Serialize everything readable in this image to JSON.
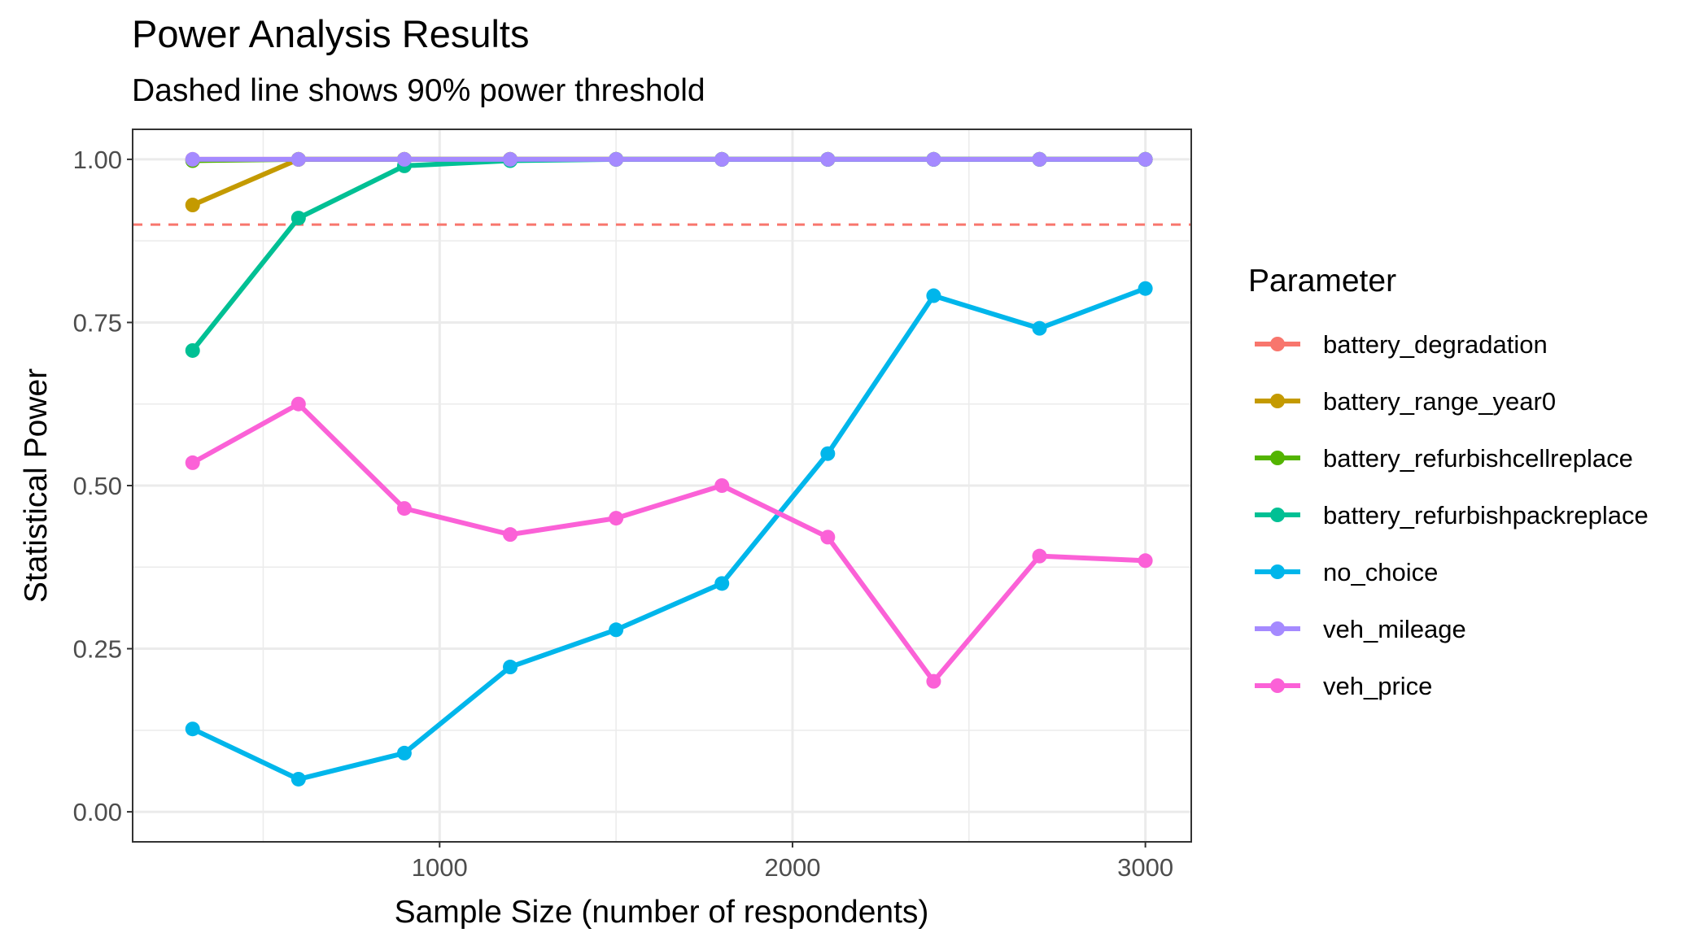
{
  "chart_data": {
    "type": "line",
    "title": "Power Analysis Results",
    "subtitle": "Dashed line shows 90% power threshold",
    "xlabel": "Sample Size (number of respondents)",
    "ylabel": "Statistical Power",
    "xlim": [
      130,
      3130
    ],
    "ylim": [
      -0.046,
      1.046
    ],
    "x_ticks": [
      1000,
      2000,
      3000
    ],
    "x_tick_labels": [
      "1000",
      "2000",
      "3000"
    ],
    "x_minor_ticks": [
      500,
      1500,
      2500
    ],
    "y_ticks": [
      0,
      0.25,
      0.5,
      0.75,
      1.0
    ],
    "y_tick_labels": [
      "0.00",
      "0.25",
      "0.50",
      "0.75",
      "1.00"
    ],
    "y_minor_ticks": [
      0.125,
      0.375,
      0.625,
      0.875
    ],
    "grid": true,
    "threshold": {
      "value": 0.9,
      "style": "dashed",
      "color": "#F8766D"
    },
    "legend": {
      "title": "Parameter",
      "placement": "right"
    },
    "x": [
      300,
      600,
      900,
      1200,
      1500,
      1800,
      2100,
      2400,
      2700,
      3000
    ],
    "series": [
      {
        "name": "battery_degradation",
        "color": "#F8766D",
        "values": [
          1,
          1,
          1,
          1,
          1,
          1,
          1,
          1,
          1,
          1
        ]
      },
      {
        "name": "battery_range_year0",
        "color": "#C49A00",
        "values": [
          0.93,
          1,
          1,
          1,
          1,
          1,
          1,
          1,
          1,
          1
        ]
      },
      {
        "name": "battery_refurbishcellreplace",
        "color": "#53B400",
        "values": [
          0.998,
          1,
          1,
          1,
          1,
          1,
          1,
          1,
          1,
          1
        ]
      },
      {
        "name": "battery_refurbishpackreplace",
        "color": "#00C094",
        "values": [
          0.707,
          0.91,
          0.99,
          0.998,
          1,
          1,
          1,
          1,
          1,
          1
        ]
      },
      {
        "name": "no_choice",
        "color": "#00B6EB",
        "values": [
          0.127,
          0.05,
          0.09,
          0.222,
          0.279,
          0.35,
          0.549,
          0.791,
          0.741,
          0.802
        ]
      },
      {
        "name": "veh_mileage",
        "color": "#A58AFF",
        "values": [
          1,
          1,
          1,
          1,
          1,
          1,
          1,
          1,
          1,
          1
        ]
      },
      {
        "name": "veh_price",
        "color": "#FB61D7",
        "values": [
          0.535,
          0.625,
          0.465,
          0.425,
          0.45,
          0.5,
          0.421,
          0.2,
          0.392,
          0.385
        ]
      }
    ]
  }
}
